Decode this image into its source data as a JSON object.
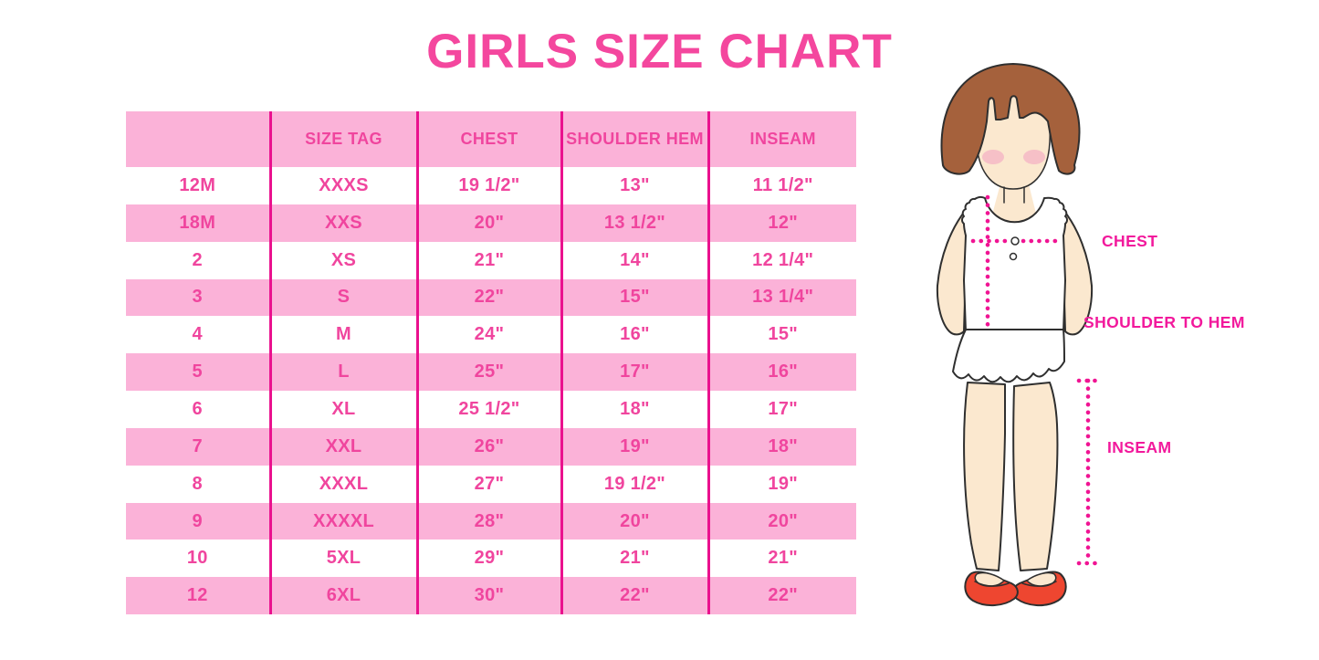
{
  "chart_data": {
    "type": "table",
    "title": "GIRLS SIZE CHART",
    "columns": [
      "",
      "SIZE TAG",
      "CHEST",
      "SHOULDER HEM",
      "INSEAM"
    ],
    "rows": [
      [
        "12M",
        "XXXS",
        "19 1/2\"",
        "13\"",
        "11 1/2\""
      ],
      [
        "18M",
        "XXS",
        "20\"",
        "13 1/2\"",
        "12\""
      ],
      [
        "2",
        "XS",
        "21\"",
        "14\"",
        "12 1/4\""
      ],
      [
        "3",
        "S",
        "22\"",
        "15\"",
        "13 1/4\""
      ],
      [
        "4",
        "M",
        "24\"",
        "16\"",
        "15\""
      ],
      [
        "5",
        "L",
        "25\"",
        "17\"",
        "16\""
      ],
      [
        "6",
        "XL",
        "25 1/2\"",
        "18\"",
        "17\""
      ],
      [
        "7",
        "XXL",
        "26\"",
        "19\"",
        "18\""
      ],
      [
        "8",
        "XXXL",
        "27\"",
        "19 1/2\"",
        "19\""
      ],
      [
        "9",
        "XXXXL",
        "28\"",
        "20\"",
        "20\""
      ],
      [
        "10",
        "5XL",
        "29\"",
        "21\"",
        "21\""
      ],
      [
        "12",
        "6XL",
        "30\"",
        "22\"",
        "22\""
      ]
    ],
    "layout_hints": "striped rows alternating white and pink starting with white; magenta column dividers; no outer border"
  },
  "figure": {
    "labels": {
      "chest": "CHEST",
      "shoulder_to_hem": "SHOULDER TO HEM",
      "inseam": "INSEAM"
    }
  },
  "colors": {
    "title_text": "#F4479E",
    "table_text": "#F0459E",
    "header_bg": "#FBB2D8",
    "row_stripe": "#FBB2D8",
    "divider": "#EA118E",
    "label_text": "#F2199C",
    "dotted_line": "#F01493",
    "hair": "#A5613C",
    "skin": "#FBE8CF",
    "blush": "#F4B9C5",
    "shoe": "#EE4630",
    "outline": "#2F2F2F"
  }
}
